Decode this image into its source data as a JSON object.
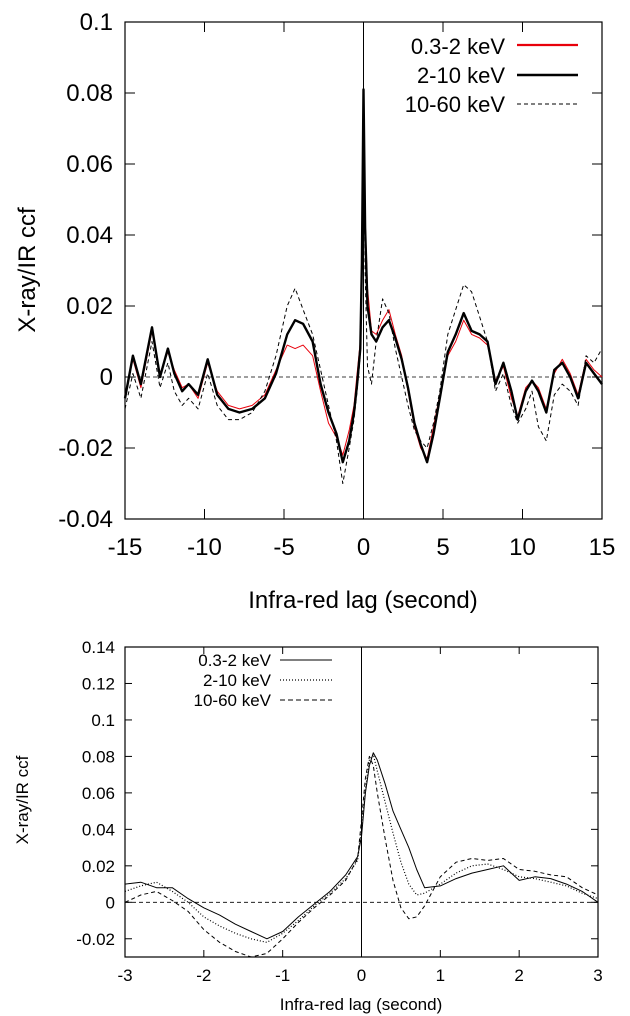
{
  "chart_data": [
    {
      "type": "line",
      "xlabel": "Infra-red lag (second)",
      "ylabel": "X-ray/IR ccf",
      "xlim": [
        -15,
        15
      ],
      "ylim": [
        -0.04,
        0.1
      ],
      "xticks": [
        "-15",
        "-10",
        "-5",
        "0",
        "5",
        "10",
        "15"
      ],
      "yticks": [
        "-0.04",
        "-0.02",
        "0",
        "0.02",
        "0.04",
        "0.06",
        "0.08",
        "0.1"
      ],
      "legend_position": "top-right",
      "reference_lines": {
        "horizontal_y": 0,
        "vertical_x": 0
      },
      "series": [
        {
          "name": "0.3-2 keV",
          "color": "#e8000b",
          "style": "solid",
          "x": [
            -15,
            -14.5,
            -14,
            -13.3,
            -12.8,
            -12.3,
            -11.9,
            -11.4,
            -11,
            -10.4,
            -9.8,
            -9.2,
            -8.5,
            -7.8,
            -7,
            -6.2,
            -5.5,
            -4.8,
            -4.3,
            -3.8,
            -3.2,
            -2.7,
            -2.2,
            -1.7,
            -1.3,
            -0.9,
            -0.6,
            -0.4,
            -0.2,
            -0.1,
            0,
            0.1,
            0.25,
            0.5,
            0.8,
            1.2,
            1.6,
            2.0,
            2.4,
            2.8,
            3.2,
            3.6,
            4.0,
            4.4,
            4.8,
            5.3,
            5.8,
            6.3,
            6.8,
            7.3,
            7.8,
            8.3,
            8.8,
            9.3,
            9.7,
            10.2,
            10.6,
            11.0,
            11.5,
            12.0,
            12.5,
            13.0,
            13.5,
            14.0,
            14.5,
            15.0
          ],
          "y": [
            -0.005,
            0.005,
            -0.003,
            0.013,
            0.001,
            0.007,
            0.002,
            -0.003,
            -0.002,
            -0.006,
            0.004,
            -0.004,
            -0.008,
            -0.009,
            -0.008,
            -0.005,
            0.002,
            0.009,
            0.008,
            0.009,
            0.006,
            -0.004,
            -0.013,
            -0.017,
            -0.022,
            -0.015,
            -0.008,
            0.001,
            0.01,
            0.03,
            0.078,
            0.045,
            0.025,
            0.013,
            0.012,
            0.016,
            0.019,
            0.012,
            0.006,
            -0.004,
            -0.014,
            -0.02,
            -0.023,
            -0.014,
            -0.005,
            0.006,
            0.01,
            0.016,
            0.012,
            0.011,
            0.009,
            -0.001,
            0.003,
            -0.006,
            -0.011,
            -0.003,
            -0.001,
            -0.003,
            -0.009,
            0.001,
            0.005,
            0.001,
            -0.005,
            0.005,
            0.002,
            0.0
          ]
        },
        {
          "name": "2-10 keV",
          "color": "#000000",
          "style": "solid-thick",
          "x": [
            -15,
            -14.5,
            -14,
            -13.3,
            -12.8,
            -12.3,
            -11.9,
            -11.4,
            -11,
            -10.4,
            -9.8,
            -9.2,
            -8.5,
            -7.8,
            -7,
            -6.2,
            -5.5,
            -4.8,
            -4.3,
            -3.8,
            -3.2,
            -2.7,
            -2.2,
            -1.7,
            -1.3,
            -0.9,
            -0.6,
            -0.4,
            -0.2,
            -0.1,
            0,
            0.1,
            0.25,
            0.5,
            0.8,
            1.2,
            1.6,
            2.0,
            2.4,
            2.8,
            3.2,
            3.6,
            4.0,
            4.4,
            4.8,
            5.3,
            5.8,
            6.3,
            6.8,
            7.3,
            7.8,
            8.3,
            8.8,
            9.3,
            9.7,
            10.2,
            10.6,
            11.0,
            11.5,
            12.0,
            12.5,
            13.0,
            13.5,
            14.0,
            14.5,
            15.0
          ],
          "y": [
            -0.006,
            0.006,
            -0.002,
            0.014,
            0.0,
            0.008,
            0.001,
            -0.004,
            -0.002,
            -0.005,
            0.005,
            -0.005,
            -0.009,
            -0.01,
            -0.009,
            -0.006,
            0.001,
            0.012,
            0.016,
            0.015,
            0.01,
            -0.002,
            -0.01,
            -0.016,
            -0.024,
            -0.018,
            -0.01,
            -0.002,
            0.008,
            0.032,
            0.081,
            0.042,
            0.02,
            0.012,
            0.01,
            0.014,
            0.016,
            0.011,
            0.005,
            -0.003,
            -0.013,
            -0.019,
            -0.024,
            -0.016,
            -0.006,
            0.007,
            0.012,
            0.018,
            0.013,
            0.012,
            0.01,
            -0.002,
            0.004,
            -0.004,
            -0.012,
            -0.004,
            -0.001,
            -0.004,
            -0.01,
            0.002,
            0.004,
            0.0,
            -0.006,
            0.004,
            0.001,
            -0.002
          ]
        },
        {
          "name": "10-60 keV",
          "color": "#000000",
          "style": "dashed",
          "x": [
            -15,
            -14.5,
            -14,
            -13.3,
            -12.8,
            -12.3,
            -11.9,
            -11.4,
            -11,
            -10.4,
            -9.8,
            -9.2,
            -8.5,
            -7.8,
            -7,
            -6.2,
            -5.5,
            -4.8,
            -4.3,
            -3.8,
            -3.2,
            -2.7,
            -2.2,
            -1.7,
            -1.3,
            -0.9,
            -0.6,
            -0.4,
            -0.2,
            -0.1,
            0,
            0.1,
            0.25,
            0.5,
            0.8,
            1.2,
            1.6,
            2.0,
            2.4,
            2.8,
            3.2,
            3.6,
            4.0,
            4.4,
            4.8,
            5.3,
            5.8,
            6.3,
            6.8,
            7.3,
            7.8,
            8.3,
            8.8,
            9.3,
            9.7,
            10.2,
            10.6,
            11.0,
            11.5,
            12.0,
            12.5,
            13.0,
            13.5,
            14.0,
            14.5,
            15.0
          ],
          "y": [
            -0.009,
            0.001,
            -0.006,
            0.01,
            -0.003,
            0.004,
            -0.004,
            -0.008,
            -0.006,
            -0.009,
            0.001,
            -0.008,
            -0.012,
            -0.012,
            -0.01,
            -0.004,
            0.006,
            0.02,
            0.025,
            0.019,
            0.012,
            0.002,
            -0.008,
            -0.018,
            -0.03,
            -0.02,
            -0.012,
            -0.004,
            0.006,
            0.03,
            0.08,
            0.03,
            0.003,
            -0.002,
            0.01,
            0.022,
            0.018,
            0.008,
            0.0,
            -0.008,
            -0.015,
            -0.018,
            -0.02,
            -0.013,
            -0.004,
            0.012,
            0.019,
            0.026,
            0.024,
            0.017,
            0.01,
            -0.004,
            0.001,
            -0.008,
            -0.013,
            -0.009,
            -0.004,
            -0.014,
            -0.018,
            -0.005,
            -0.002,
            -0.004,
            -0.008,
            0.006,
            0.004,
            0.008
          ]
        }
      ]
    },
    {
      "type": "line",
      "xlabel": "Infra-red lag (second)",
      "ylabel": "X-ray/IR ccf",
      "xlim": [
        -3,
        3
      ],
      "ylim": [
        -0.03,
        0.14
      ],
      "xticks": [
        "-3",
        "-2",
        "-1",
        "0",
        "1",
        "2",
        "3"
      ],
      "yticks": [
        "-0.02",
        "0",
        "0.02",
        "0.04",
        "0.06",
        "0.08",
        "0.1",
        "0.12",
        "0.14"
      ],
      "legend_position": "top-left",
      "reference_lines": {
        "horizontal_y": 0,
        "vertical_x": 0
      },
      "series": [
        {
          "name": "0.3-2 keV",
          "color": "#000000",
          "style": "solid",
          "x": [
            -3,
            -2.8,
            -2.6,
            -2.4,
            -2.2,
            -2.0,
            -1.8,
            -1.6,
            -1.4,
            -1.2,
            -1.0,
            -0.8,
            -0.6,
            -0.4,
            -0.2,
            -0.05,
            0.0,
            0.05,
            0.1,
            0.15,
            0.2,
            0.3,
            0.4,
            0.5,
            0.6,
            0.7,
            0.8,
            1.0,
            1.2,
            1.4,
            1.6,
            1.8,
            2.0,
            2.2,
            2.4,
            2.6,
            2.8,
            3.0
          ],
          "y": [
            0.01,
            0.011,
            0.008,
            0.008,
            0.002,
            -0.003,
            -0.007,
            -0.012,
            -0.016,
            -0.02,
            -0.016,
            -0.008,
            -0.001,
            0.006,
            0.015,
            0.025,
            0.036,
            0.06,
            0.075,
            0.082,
            0.078,
            0.065,
            0.05,
            0.04,
            0.03,
            0.018,
            0.008,
            0.009,
            0.013,
            0.016,
            0.018,
            0.02,
            0.012,
            0.014,
            0.013,
            0.01,
            0.006,
            0.0
          ]
        },
        {
          "name": "2-10 keV",
          "color": "#000000",
          "style": "dotted",
          "x": [
            -3,
            -2.8,
            -2.6,
            -2.4,
            -2.2,
            -2.0,
            -1.8,
            -1.6,
            -1.4,
            -1.2,
            -1.0,
            -0.8,
            -0.6,
            -0.4,
            -0.2,
            -0.05,
            0.0,
            0.05,
            0.1,
            0.15,
            0.2,
            0.3,
            0.4,
            0.5,
            0.6,
            0.7,
            0.8,
            1.0,
            1.2,
            1.4,
            1.6,
            1.8,
            2.0,
            2.2,
            2.4,
            2.6,
            2.8,
            3.0
          ],
          "y": [
            0.006,
            0.009,
            0.011,
            0.006,
            0.0,
            -0.008,
            -0.013,
            -0.017,
            -0.02,
            -0.022,
            -0.017,
            -0.01,
            -0.002,
            0.005,
            0.013,
            0.023,
            0.04,
            0.062,
            0.078,
            0.081,
            0.072,
            0.055,
            0.038,
            0.022,
            0.01,
            0.004,
            0.005,
            0.01,
            0.016,
            0.02,
            0.021,
            0.018,
            0.014,
            0.013,
            0.011,
            0.009,
            0.005,
            0.002
          ]
        },
        {
          "name": "10-60 keV",
          "color": "#000000",
          "style": "dashed",
          "x": [
            -3,
            -2.8,
            -2.6,
            -2.4,
            -2.2,
            -2.0,
            -1.8,
            -1.6,
            -1.4,
            -1.2,
            -1.0,
            -0.8,
            -0.6,
            -0.4,
            -0.2,
            -0.05,
            0.0,
            0.05,
            0.1,
            0.15,
            0.2,
            0.3,
            0.4,
            0.5,
            0.6,
            0.7,
            0.8,
            1.0,
            1.2,
            1.4,
            1.6,
            1.8,
            2.0,
            2.2,
            2.4,
            2.6,
            2.8,
            3.0
          ],
          "y": [
            0.0,
            0.004,
            0.006,
            0.001,
            -0.005,
            -0.015,
            -0.022,
            -0.027,
            -0.03,
            -0.028,
            -0.02,
            -0.011,
            -0.003,
            0.004,
            0.012,
            0.024,
            0.045,
            0.068,
            0.08,
            0.075,
            0.06,
            0.035,
            0.012,
            -0.003,
            -0.009,
            -0.008,
            -0.002,
            0.014,
            0.022,
            0.024,
            0.023,
            0.024,
            0.018,
            0.017,
            0.015,
            0.014,
            0.008,
            0.004
          ]
        }
      ]
    }
  ]
}
